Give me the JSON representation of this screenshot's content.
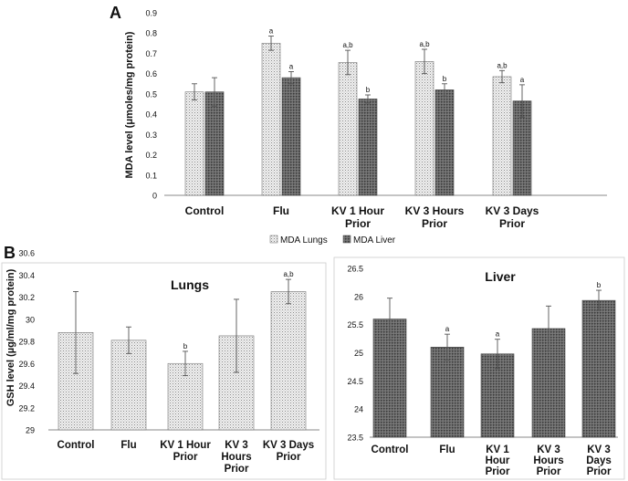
{
  "chart_data": [
    {
      "panel": "A",
      "type": "bar",
      "title": "",
      "xlabel": "",
      "ylabel": "MDA level (μmoles/mg protein)",
      "ylim": [
        0,
        0.9
      ],
      "yticks": [
        "0",
        "0.1",
        "0.2",
        "0.3",
        "0.4",
        "0.5",
        "0.6",
        "0.7",
        "0.8",
        "0.9"
      ],
      "categories": [
        [
          "Control"
        ],
        [
          "Flu"
        ],
        [
          "KV 1 Hour",
          "Prior"
        ],
        [
          "KV 3 Hours",
          "Prior"
        ],
        [
          "KV 3 Days",
          "Prior"
        ]
      ],
      "series": [
        {
          "name": "MDA Lungs",
          "values": [
            0.51,
            0.75,
            0.655,
            0.66,
            0.585
          ],
          "errors": [
            0.04,
            0.035,
            0.06,
            0.06,
            0.03
          ],
          "labels": [
            "",
            "a",
            "a,b",
            "a,b",
            "a,b"
          ]
        },
        {
          "name": "MDA Liver",
          "values": [
            0.51,
            0.58,
            0.475,
            0.52,
            0.465
          ],
          "errors": [
            0.07,
            0.03,
            0.02,
            0.03,
            0.08
          ],
          "labels": [
            "",
            "a",
            "b",
            "b",
            "a"
          ]
        }
      ],
      "legend_position": "bottom"
    },
    {
      "panel": "B",
      "type": "bar",
      "title": "Lungs",
      "xlabel": "",
      "ylabel": "GSH level (µg/ml/mg protein)",
      "ylim": [
        29,
        30.6
      ],
      "yticks": [
        "29",
        "29.2",
        "29.4",
        "29.6",
        "29.8",
        "30",
        "30.2",
        "30.4",
        "30.6"
      ],
      "categories": [
        [
          "Control"
        ],
        [
          "Flu"
        ],
        [
          "KV 1 Hour",
          "Prior"
        ],
        [
          "KV 3",
          "Hours",
          "Prior"
        ],
        [
          "KV 3 Days",
          "Prior"
        ]
      ],
      "values": [
        29.88,
        29.81,
        29.6,
        29.85,
        30.25
      ],
      "errors": [
        0.37,
        0.12,
        0.11,
        0.33,
        0.11
      ],
      "labels": [
        "",
        "",
        "b",
        "",
        "a,b"
      ]
    },
    {
      "panel": "B",
      "type": "bar",
      "title": "Liver",
      "xlabel": "",
      "ylabel": "",
      "ylim": [
        23.5,
        26.5
      ],
      "yticks": [
        "23.5",
        "24",
        "24.5",
        "25",
        "25.5",
        "26",
        "26.5"
      ],
      "categories": [
        [
          "Control"
        ],
        [
          "Flu"
        ],
        [
          "KV 1",
          "Hour",
          "Prior"
        ],
        [
          "KV 3",
          "Hours",
          "Prior"
        ],
        [
          "KV 3",
          "Days",
          "Prior"
        ]
      ],
      "values": [
        25.6,
        25.1,
        24.98,
        25.43,
        25.93
      ],
      "errors": [
        0.37,
        0.23,
        0.26,
        0.4,
        0.18
      ],
      "labels": [
        "",
        "a",
        "a",
        "",
        "b"
      ]
    }
  ],
  "panel_labels": {
    "a": "A",
    "b": "B"
  }
}
